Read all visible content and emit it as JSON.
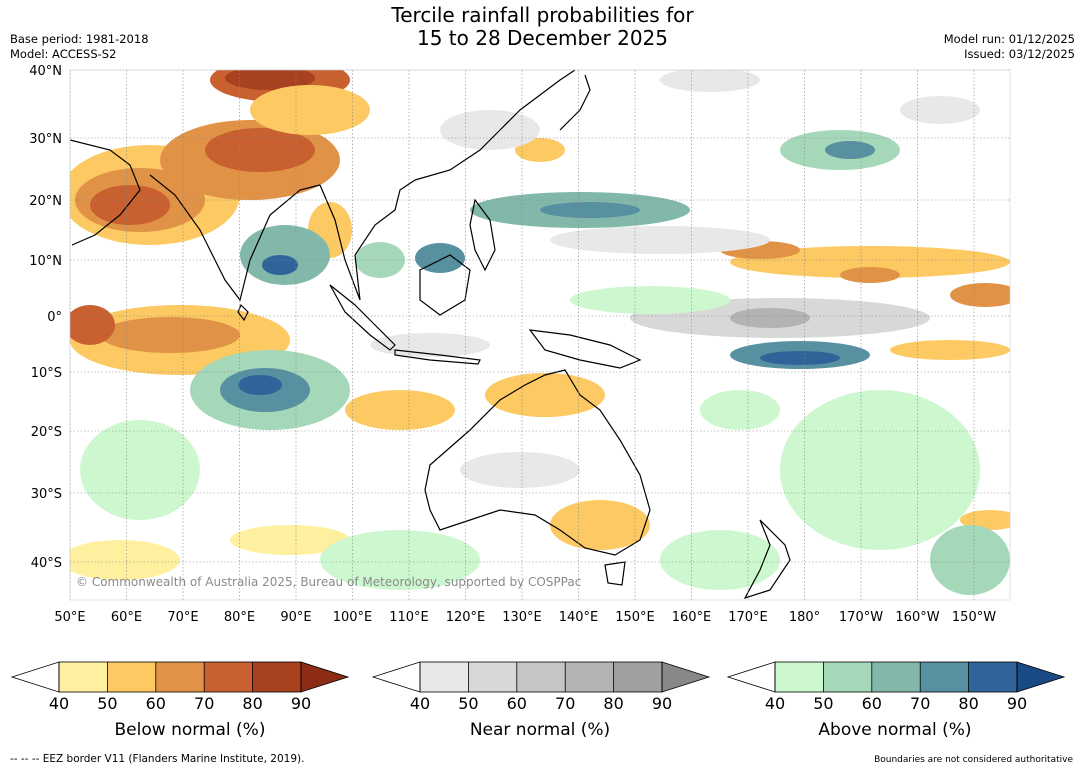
{
  "title": {
    "line1": "Tercile rainfall probabilities for",
    "line2": "15 to 28 December 2025"
  },
  "meta_left": {
    "base_period": "Base period: 1981-2018",
    "model": "Model: ACCESS-S2"
  },
  "meta_right": {
    "model_run": "Model run: 01/12/2025",
    "issued": "Issued: 03/12/2025"
  },
  "map": {
    "lat_labels": [
      "40°N",
      "30°N",
      "20°N",
      "10°N",
      "0°",
      "10°S",
      "20°S",
      "30°S",
      "40°S"
    ],
    "lon_labels": [
      "50°E",
      "60°E",
      "70°E",
      "80°E",
      "90°E",
      "100°E",
      "110°E",
      "120°E",
      "130°E",
      "140°E",
      "150°E",
      "160°E",
      "170°E",
      "180°",
      "170°W",
      "160°W",
      "150°W"
    ],
    "copyright": "© Commonwealth of Australia 2025, Bureau of Meteorology, supported by COSPPac"
  },
  "colorbars": [
    {
      "label": "Below normal (%)",
      "ticks": [
        "40",
        "50",
        "60",
        "70",
        "80",
        "90"
      ],
      "colors": [
        "#fff0a0",
        "#fcc962",
        "#e09346",
        "#c8602f",
        "#a7411f",
        "#8c2c15"
      ]
    },
    {
      "label": "Near normal (%)",
      "ticks": [
        "40",
        "50",
        "60",
        "70",
        "80",
        "90"
      ],
      "colors": [
        "#e8e8e8",
        "#d8d8d8",
        "#c6c6c6",
        "#b3b3b3",
        "#a0a0a0",
        "#888888"
      ]
    },
    {
      "label": "Above normal (%)",
      "ticks": [
        "40",
        "50",
        "60",
        "70",
        "80",
        "90"
      ],
      "colors": [
        "#cdf8cf",
        "#a5d8b8",
        "#81b8aa",
        "#5790a0",
        "#30639a",
        "#1a4a85"
      ]
    }
  ],
  "footer": {
    "eez": "--  --  -- EEZ border V11 (Flanders Marine Institute, 2019).",
    "disclaimer": "Boundaries are not considered authoritative"
  }
}
